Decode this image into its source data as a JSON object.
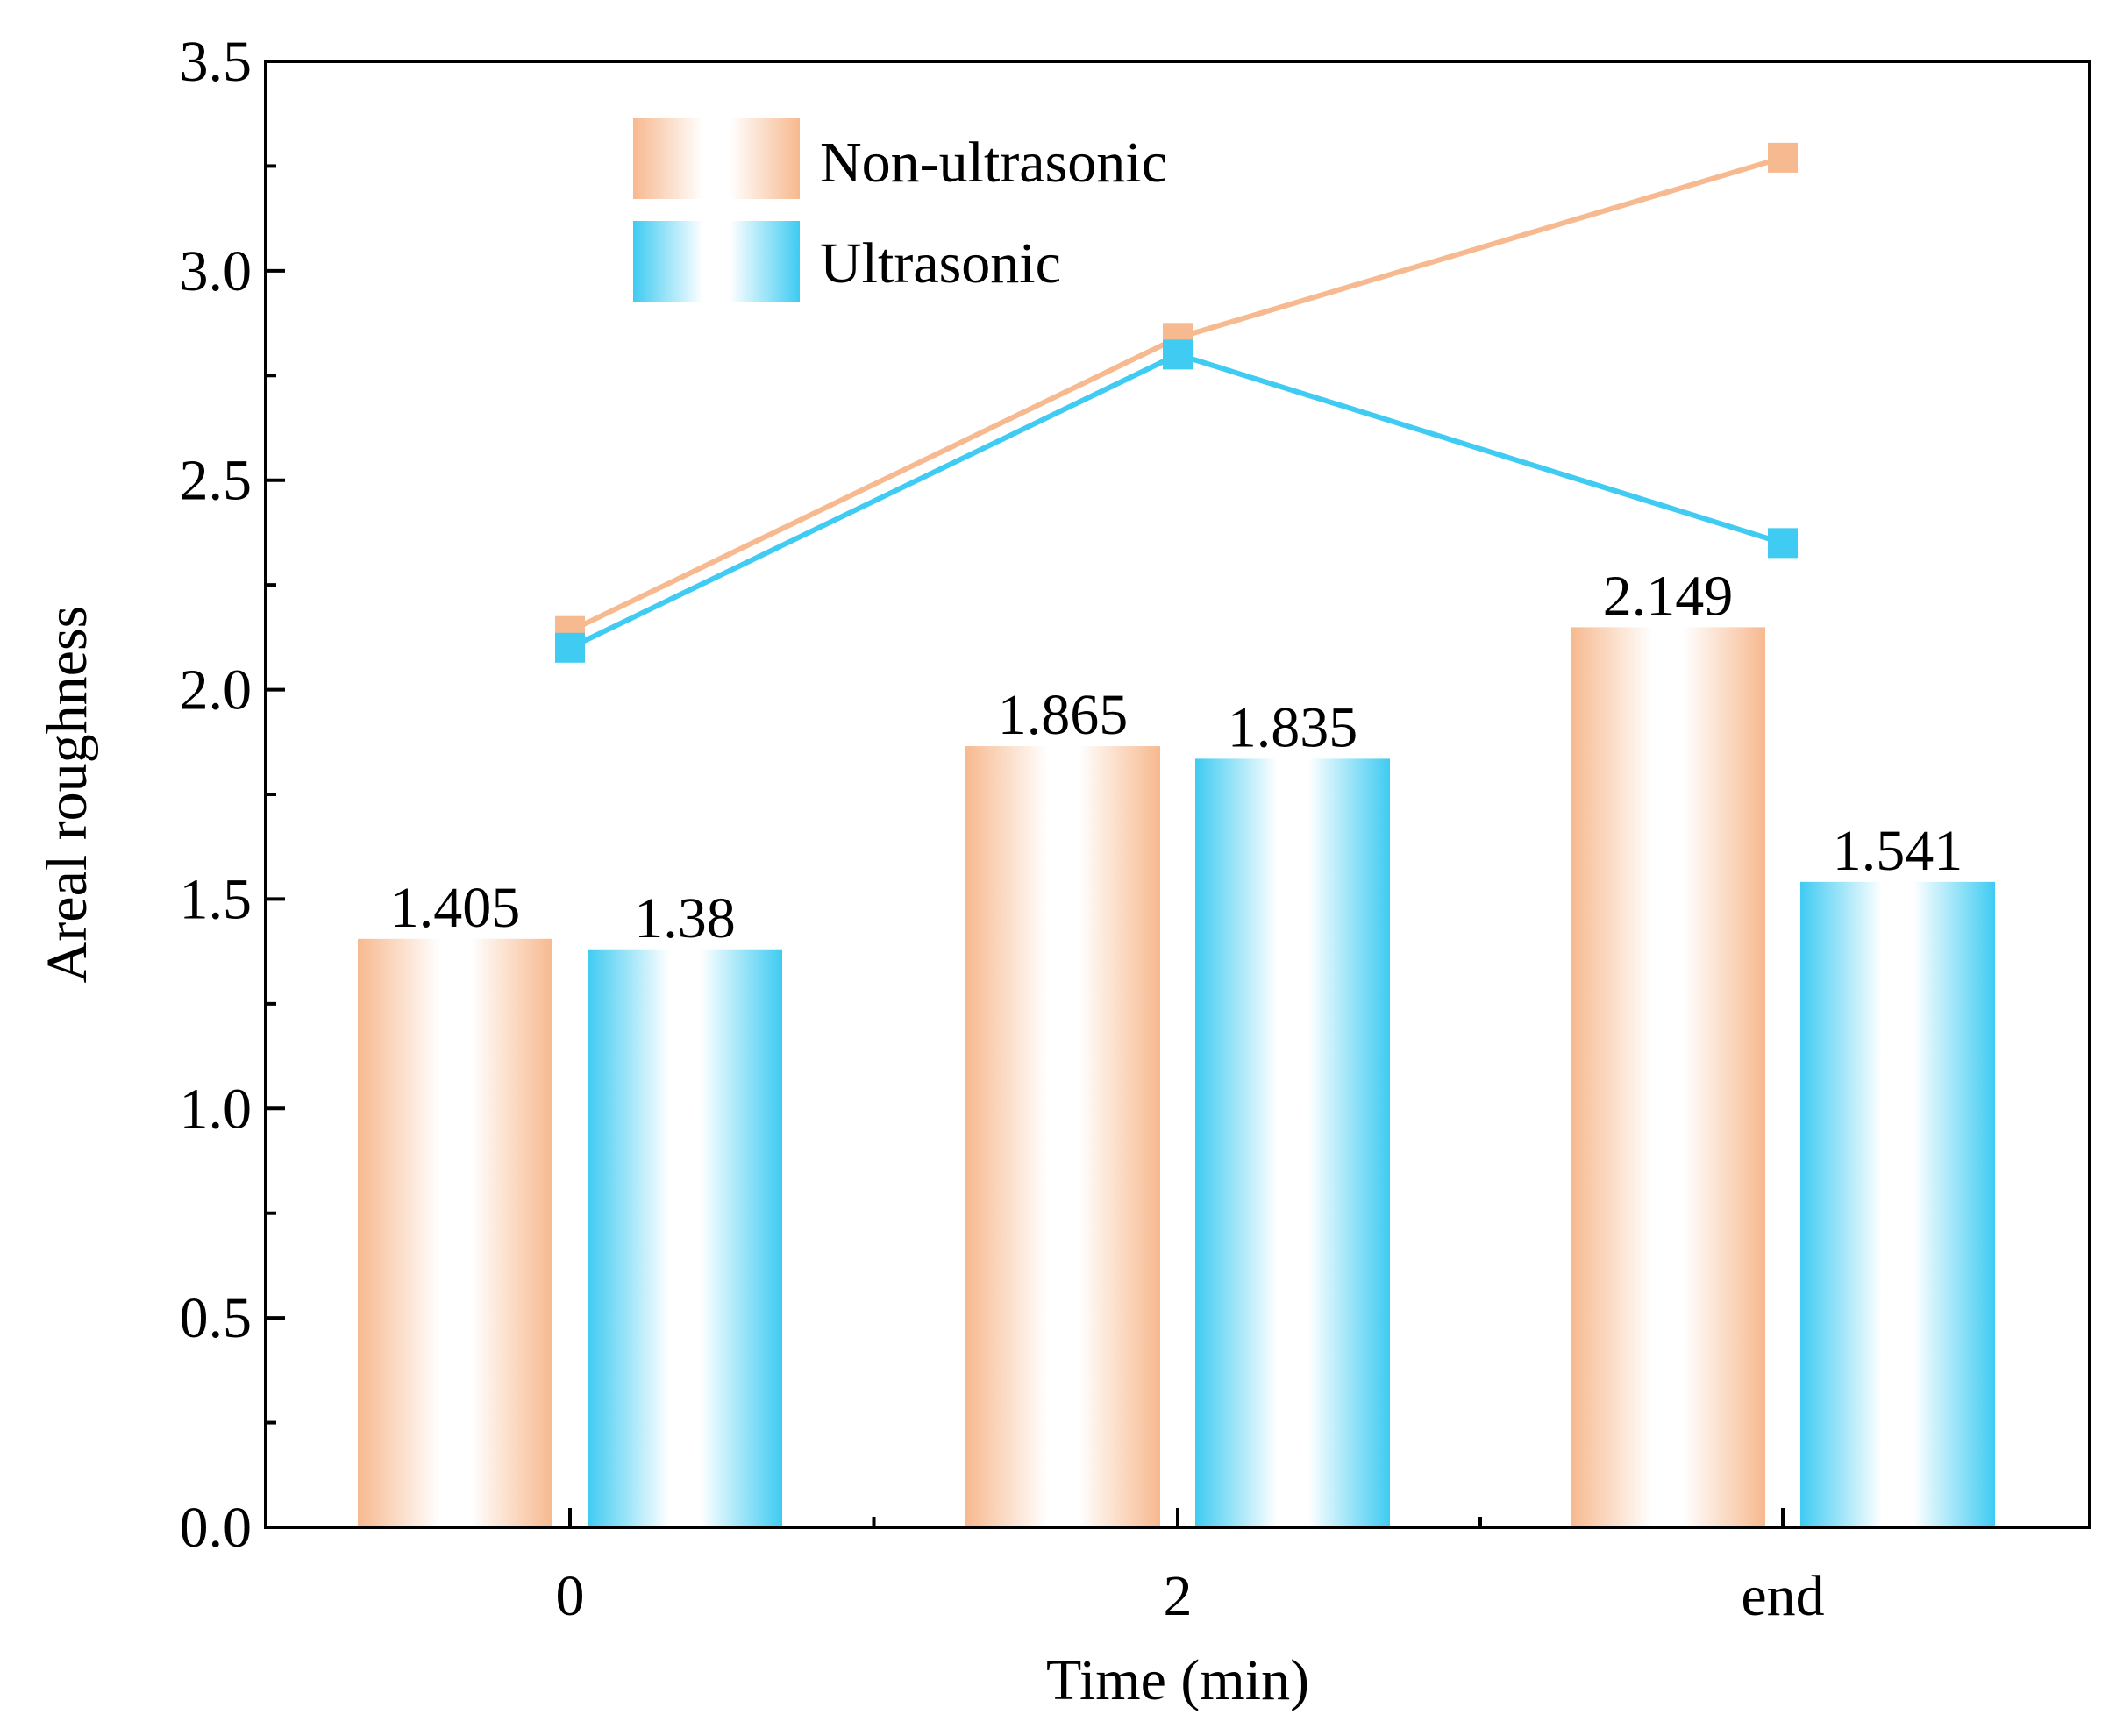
{
  "chart_data": {
    "type": "bar",
    "title": "",
    "xlabel": "Time (min)",
    "ylabel": "Areal roughness",
    "categories": [
      "0",
      "2",
      "end"
    ],
    "ylim": [
      0,
      3.5
    ],
    "yticks": [
      "0.0",
      "0.5",
      "1.0",
      "1.5",
      "2.0",
      "2.5",
      "3.0",
      "3.5"
    ],
    "grid": false,
    "legend_position": "top-center",
    "series": [
      {
        "name": "Non-ultrasonic",
        "color": "#F7B98F",
        "values": [
          1.405,
          1.865,
          2.149
        ],
        "labels": [
          "1.405",
          "1.865",
          "2.149"
        ],
        "line_values": [
          2.14,
          2.84,
          3.27
        ]
      },
      {
        "name": "Ultrasonic",
        "color": "#3FCBF2",
        "values": [
          1.38,
          1.835,
          1.541
        ],
        "labels": [
          "1.38",
          "1.835",
          "1.541"
        ],
        "line_values": [
          2.1,
          2.8,
          2.35
        ]
      }
    ]
  }
}
